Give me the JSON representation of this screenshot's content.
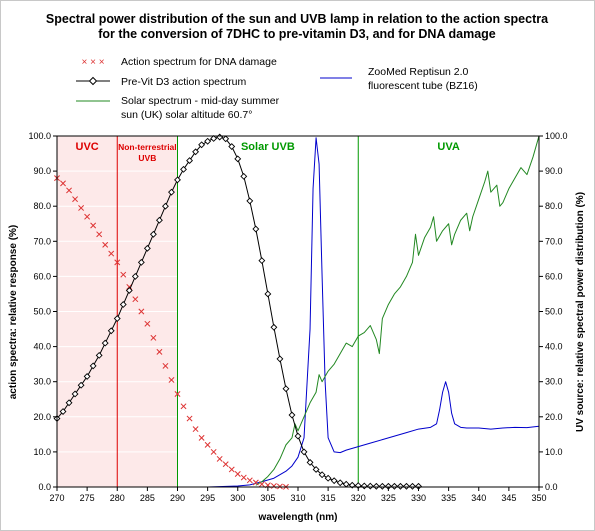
{
  "chart_data": {
    "type": "line",
    "title_line1": "Spectral power distribution of the sun and UVB lamp in relation to the action spectra",
    "title_line2": "for the conversion of 7DHC to pre-vitamin D3, and for DNA damage",
    "xlabel": "wavelength (nm)",
    "ylabel_left": "action spectra: relative response (%)",
    "ylabel_right": "UV source: relative spectral power distribution (%)",
    "xlim": [
      270,
      350
    ],
    "ylim": [
      0,
      100
    ],
    "x_ticks": [
      "270",
      "275",
      "280",
      "285",
      "290",
      "295",
      "300",
      "305",
      "310",
      "315",
      "320",
      "325",
      "330",
      "335",
      "340",
      "345",
      "350"
    ],
    "y_ticks": [
      "0.0",
      "10.0",
      "20.0",
      "30.0",
      "40.0",
      "50.0",
      "60.0",
      "70.0",
      "80.0",
      "90.0",
      "100.0"
    ],
    "regions": [
      {
        "label_lines": [
          "UVC"
        ],
        "x_start": 270,
        "x_end": 280,
        "color": "#dd0000",
        "shaded": true
      },
      {
        "label_lines": [
          "Non-terrestrial",
          "UVB"
        ],
        "x_start": 280,
        "x_end": 290,
        "color": "#dd0000",
        "shaded": true
      },
      {
        "label_lines": [
          "Solar UVB"
        ],
        "x_start": 290,
        "x_end": 320,
        "color": "#009900",
        "shaded": false
      },
      {
        "label_lines": [
          "UVA"
        ],
        "x_start": 320,
        "x_end": 350,
        "color": "#009900",
        "shaded": false
      }
    ],
    "legend": {
      "dna": "Action spectrum for DNA damage",
      "previt": "Pre-Vit D3 action spectrum",
      "solar_line1": "Solar spectrum - mid-day summer",
      "solar_line2": "sun (UK)  solar altitude 60.7°",
      "lamp_line1": "ZooMed Reptisun 2.0",
      "lamp_line2": "fluorescent tube   (BZ16)"
    },
    "colors": {
      "dna": "#dd3333",
      "previt": "#000000",
      "solar": "#228822",
      "lamp": "#0000cc",
      "uv_shade": "#fde9e9",
      "grid": "#ffffff"
    },
    "series": [
      {
        "key": "dna",
        "x": [
          270,
          271,
          272,
          273,
          274,
          275,
          276,
          277,
          278,
          279,
          280,
          281,
          282,
          283,
          284,
          285,
          286,
          287,
          288,
          289,
          290,
          291,
          292,
          293,
          294,
          295,
          296,
          297,
          298,
          299,
          300,
          301,
          302,
          303,
          304,
          305,
          306,
          307,
          308
        ],
        "y": [
          88,
          86.5,
          84.5,
          82,
          79.5,
          77,
          74.5,
          72,
          69,
          66.5,
          64,
          60.5,
          57,
          53.5,
          50,
          46.5,
          42.5,
          38.5,
          34.5,
          30.5,
          26.5,
          23,
          19.5,
          16.5,
          14,
          12,
          10,
          8,
          6.5,
          5,
          3.7,
          2.7,
          1.9,
          1.3,
          0.8,
          0.5,
          0.3,
          0.15,
          0.05
        ]
      },
      {
        "key": "previt",
        "x": [
          270,
          271,
          272,
          273,
          274,
          275,
          276,
          277,
          278,
          279,
          280,
          281,
          282,
          283,
          284,
          285,
          286,
          287,
          288,
          289,
          290,
          291,
          292,
          293,
          294,
          295,
          296,
          297,
          298,
          299,
          300,
          301,
          302,
          303,
          304,
          305,
          306,
          307,
          308,
          309,
          310,
          311,
          312,
          313,
          314,
          315,
          316,
          317,
          318,
          319,
          320,
          321,
          322,
          323,
          324,
          325,
          326,
          327,
          328,
          329,
          330
        ],
        "y": [
          19.5,
          21.5,
          24,
          26.5,
          29,
          31.5,
          34.5,
          37.5,
          41,
          44.5,
          48,
          52,
          56,
          60,
          64,
          68,
          72,
          76,
          80,
          84,
          87.5,
          90.5,
          93,
          95.5,
          97.5,
          98.5,
          99.3,
          99.7,
          99.2,
          97,
          93.5,
          88.5,
          81.5,
          73.5,
          64.5,
          55,
          45.5,
          36.5,
          28,
          20.5,
          14.5,
          10,
          7,
          5,
          3.5,
          2.5,
          1.8,
          1.2,
          0.8,
          0.5,
          0.4,
          0.3,
          0.25,
          0.2,
          0.2,
          0.2,
          0.2,
          0.2,
          0.2,
          0.2,
          0.2
        ]
      },
      {
        "key": "solar",
        "x": [
          303,
          304,
          305,
          306,
          307,
          307.5,
          308,
          309,
          309.5,
          310,
          311,
          312,
          313,
          313.5,
          314,
          315,
          316,
          317,
          318,
          319,
          320,
          321,
          322,
          323,
          323.5,
          324,
          325,
          326,
          327,
          328,
          329,
          329.5,
          330,
          331,
          332,
          332.5,
          333,
          334,
          335,
          335.5,
          336,
          337,
          338,
          338.5,
          339,
          340,
          341,
          341.5,
          342,
          343,
          343.5,
          344,
          345,
          346,
          347,
          348,
          349,
          350
        ],
        "y": [
          0.5,
          1.5,
          3,
          5,
          8,
          10,
          12,
          14,
          18,
          16,
          20,
          24,
          27,
          32,
          30,
          33,
          35,
          38,
          41,
          40,
          43,
          44,
          46,
          42,
          38,
          48,
          52,
          55,
          57,
          60,
          64,
          72,
          66,
          71,
          74,
          77,
          70,
          73,
          75,
          69,
          72,
          76,
          78,
          73,
          77,
          82,
          87,
          90,
          84,
          86,
          80,
          81,
          85,
          88,
          91,
          89,
          94,
          100
        ]
      },
      {
        "key": "lamp",
        "x": [
          290,
          295,
          300,
          302,
          304,
          306,
          308,
          309,
          310,
          311,
          312,
          312.5,
          313,
          313.5,
          314,
          314.5,
          315,
          316,
          317,
          318,
          320,
          322,
          324,
          326,
          328,
          330,
          332,
          333,
          333.5,
          334,
          334.5,
          335,
          335.5,
          336,
          336.5,
          337,
          338,
          340,
          342,
          344,
          346,
          348,
          350
        ],
        "y": [
          0,
          0,
          0.3,
          0.6,
          1.5,
          2.5,
          4.5,
          6,
          8.5,
          14,
          45,
          85,
          99.5,
          92,
          60,
          30,
          14,
          10,
          9.8,
          10.5,
          11.5,
          12.5,
          13.5,
          14.5,
          15.5,
          16.5,
          17,
          18,
          22,
          27,
          30,
          27,
          21,
          18,
          17.5,
          17,
          16.8,
          16.8,
          16.5,
          16.8,
          17,
          16.9,
          17.3
        ]
      }
    ]
  }
}
